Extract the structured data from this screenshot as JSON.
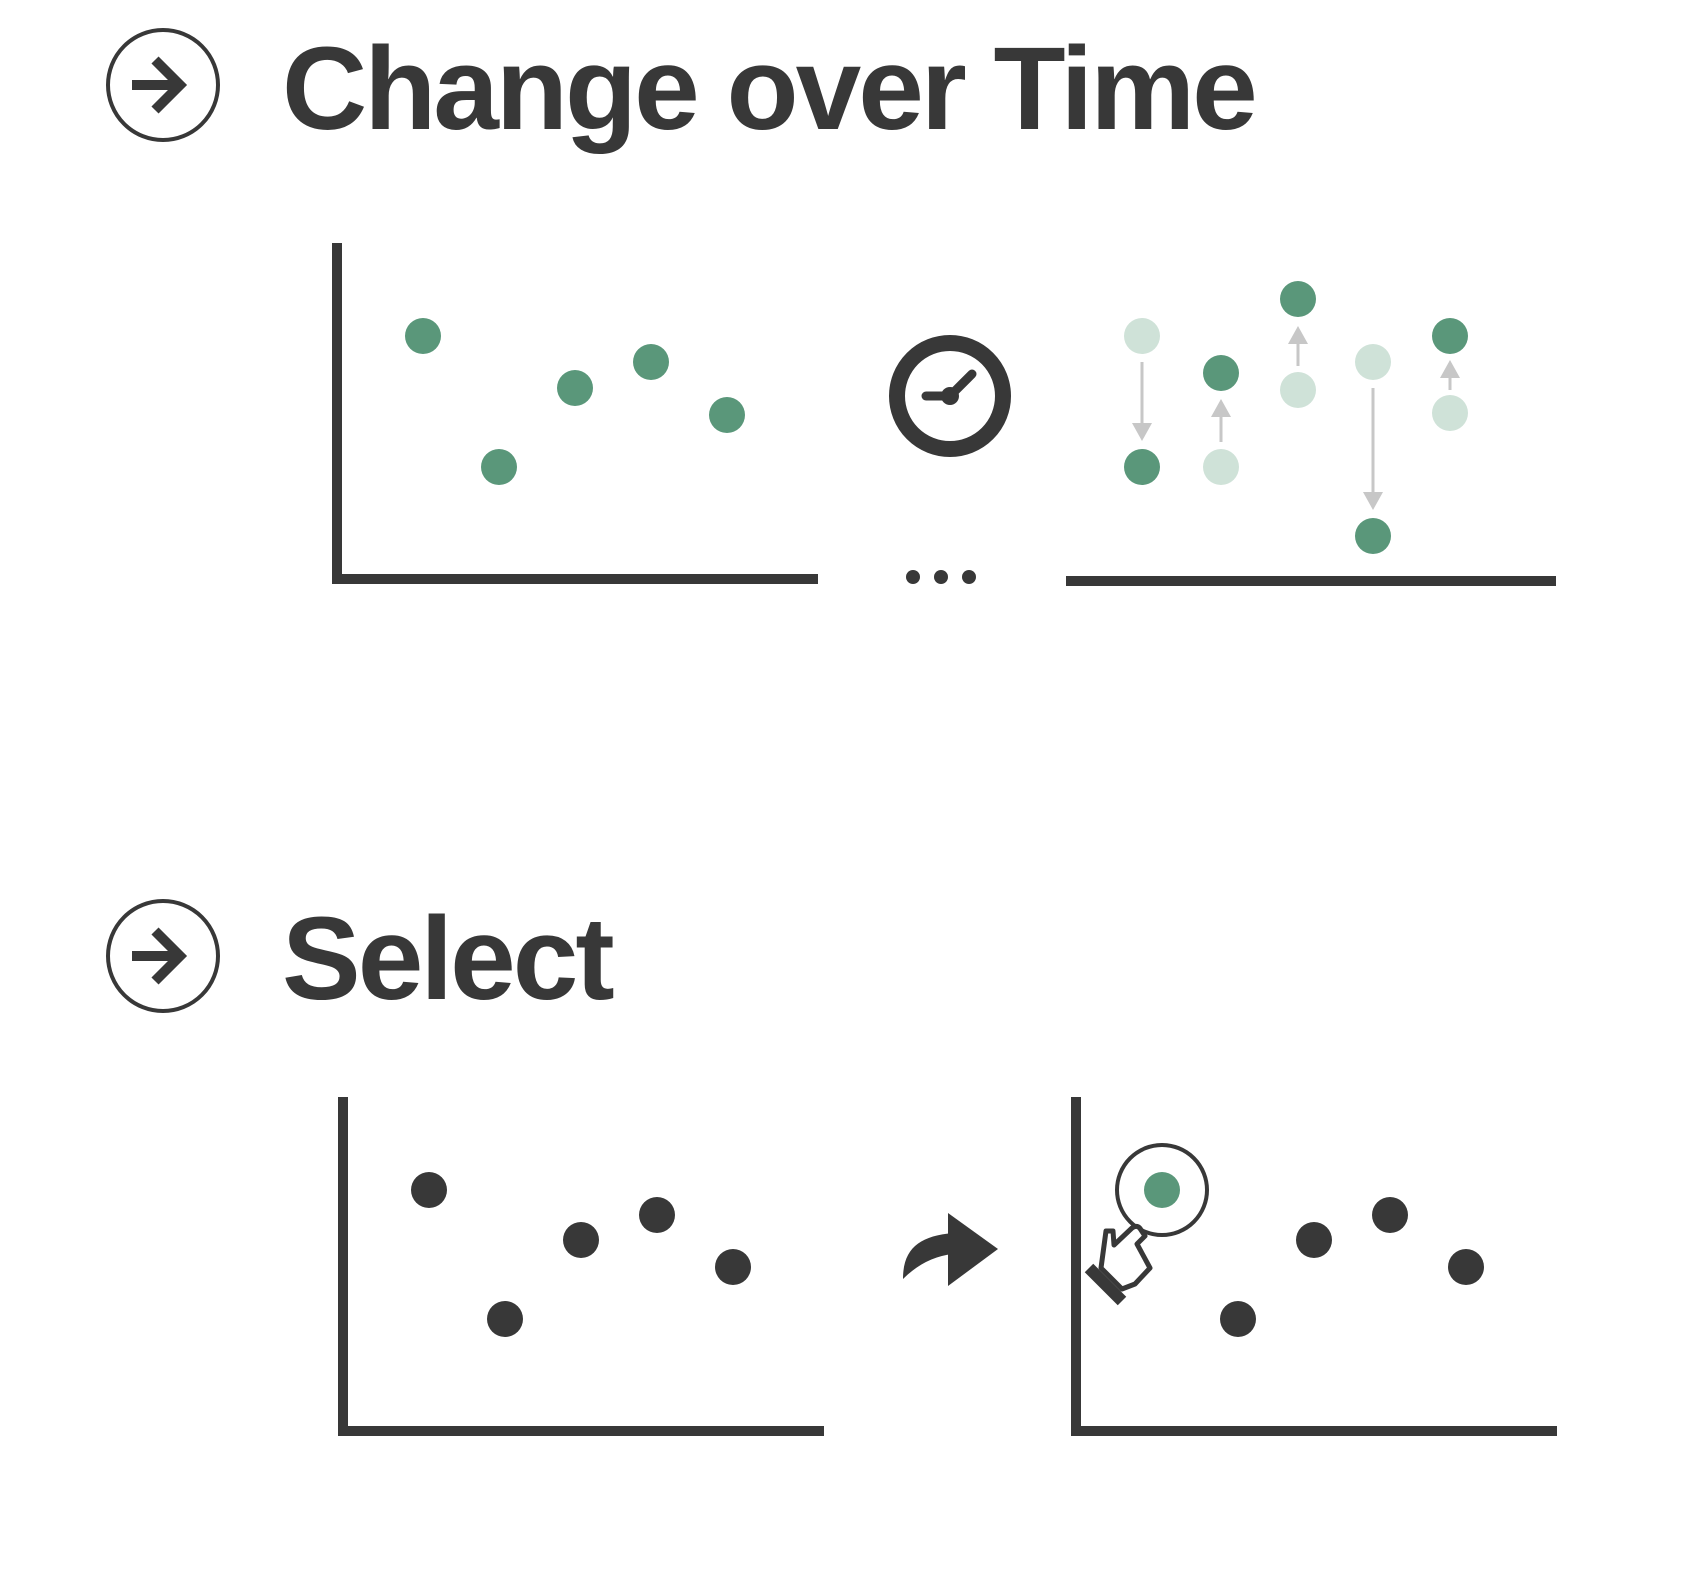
{
  "colors": {
    "ink": "#383838",
    "mark": "#5a977a",
    "mark_faded": "#cfe2d8",
    "arrow_faded": "#c7c7c7",
    "background": "#ffffff"
  },
  "sections": {
    "change_over_time": {
      "title": "Change over Time",
      "icon": "arrow-right-circle-icon",
      "transition_icon": "clock-icon",
      "ellipsis_icon": "ellipsis-icon"
    },
    "select": {
      "title": "Select",
      "icon": "arrow-right-circle-icon",
      "transition_icon": "curved-arrow-icon",
      "pointer_icon": "hand-pointer-icon"
    }
  }
}
